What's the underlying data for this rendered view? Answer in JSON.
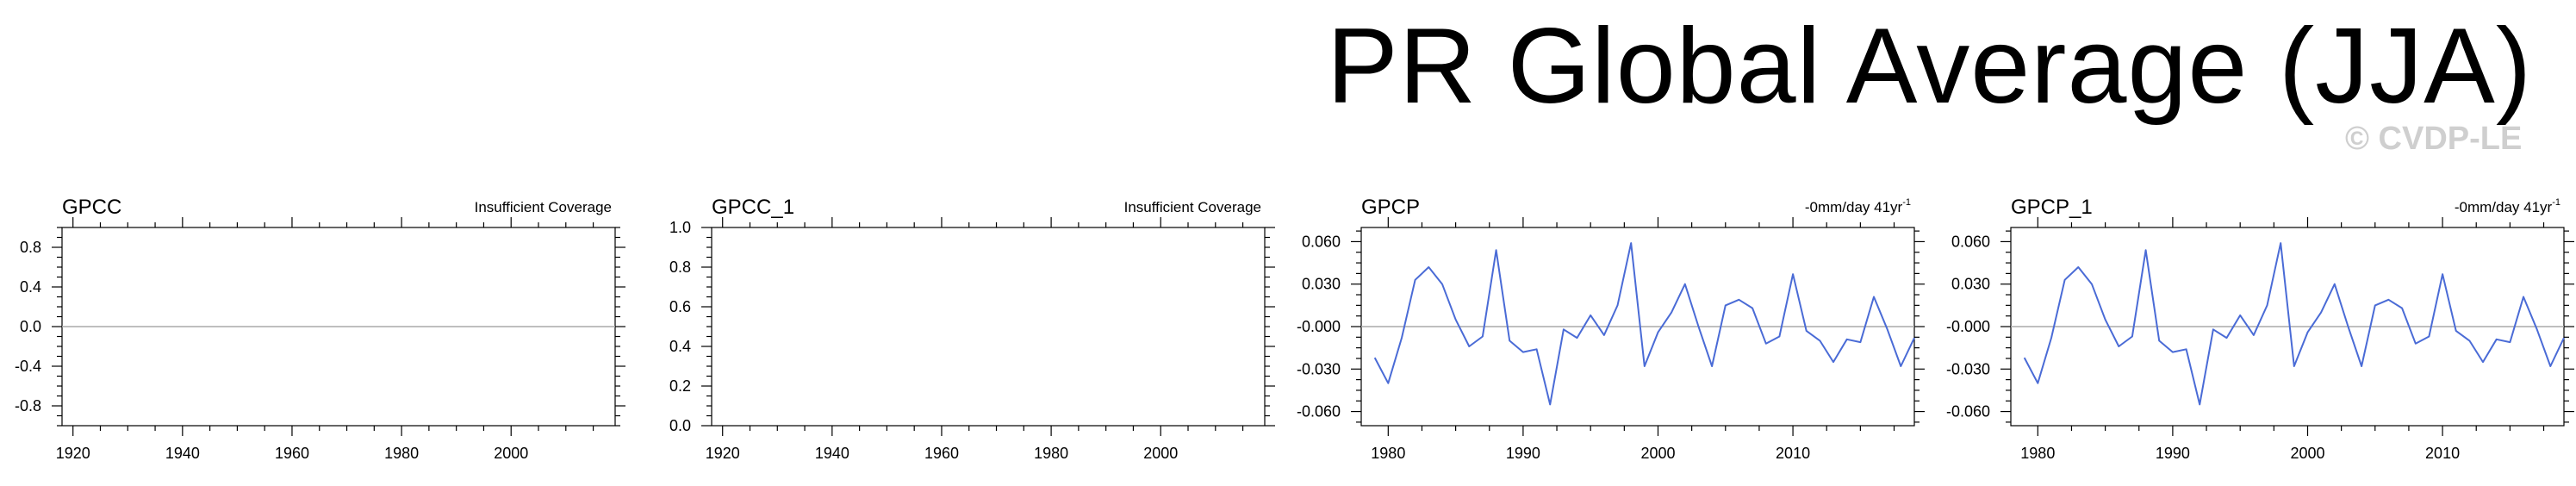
{
  "page": {
    "title": "PR Global Average (JJA)",
    "watermark": "© CVDP-LE"
  },
  "colors": {
    "series": "#4a6bd6",
    "zero_line": "#aaaaaa",
    "frame": "#000000"
  },
  "chart_data": [
    {
      "type": "line",
      "title": "GPCC",
      "note": "Insufficient Coverage",
      "note_sup": "",
      "xlim": [
        1918,
        2019
      ],
      "x_ticks": [
        1920,
        1940,
        1960,
        1980,
        2000
      ],
      "x_tick_labels": [
        "1920",
        "1940",
        "1960",
        "1980",
        "2000"
      ],
      "ylim": [
        -1,
        1
      ],
      "y_ticks": [
        0.8,
        0.4,
        0.0,
        -0.4,
        -0.8
      ],
      "y_tick_labels": [
        "0.8",
        "0.4",
        "0.0",
        "-0.4",
        "-0.8"
      ],
      "zero_line": true,
      "series": []
    },
    {
      "type": "line",
      "title": "GPCC_1",
      "note": "Insufficient Coverage",
      "note_sup": "",
      "xlim": [
        1918,
        2019
      ],
      "x_ticks": [
        1920,
        1940,
        1960,
        1980,
        2000
      ],
      "x_tick_labels": [
        "1920",
        "1940",
        "1960",
        "1980",
        "2000"
      ],
      "ylim": [
        0,
        1
      ],
      "y_ticks": [
        1.0,
        0.8,
        0.6,
        0.4,
        0.2,
        0.0
      ],
      "y_tick_labels": [
        "1.0",
        "0.8",
        "0.6",
        "0.4",
        "0.2",
        "0.0"
      ],
      "zero_line": false,
      "series": []
    },
    {
      "type": "line",
      "title": "GPCP",
      "note": "-0mm/day 41yr",
      "note_sup": "-1",
      "xlim": [
        1978,
        2019
      ],
      "x_ticks": [
        1980,
        1990,
        2000,
        2010
      ],
      "x_tick_labels": [
        "1980",
        "1990",
        "2000",
        "2010"
      ],
      "ylim": [
        -0.07,
        0.07
      ],
      "y_ticks": [
        0.06,
        0.03,
        0.0,
        -0.03,
        -0.06
      ],
      "y_tick_labels": [
        "0.060",
        "0.030",
        "-0.000",
        "-0.030",
        "-0.060"
      ],
      "zero_line": true,
      "series": [
        {
          "x": [
            1979,
            1980,
            1981,
            1982,
            1983,
            1984,
            1985,
            1986,
            1987,
            1988,
            1989,
            1990,
            1991,
            1992,
            1993,
            1994,
            1995,
            1996,
            1997,
            1998,
            1999,
            2000,
            2001,
            2002,
            2003,
            2004,
            2005,
            2006,
            2007,
            2008,
            2009,
            2010,
            2011,
            2012,
            2013,
            2014,
            2015,
            2016,
            2017,
            2018,
            2019
          ],
          "values": [
            -0.022,
            -0.04,
            -0.008,
            0.033,
            0.042,
            0.03,
            0.005,
            -0.014,
            -0.007,
            0.054,
            -0.01,
            -0.018,
            -0.016,
            -0.055,
            -0.002,
            -0.008,
            0.008,
            -0.006,
            0.015,
            0.059,
            -0.028,
            -0.004,
            0.01,
            0.03,
            0.0,
            -0.028,
            0.015,
            0.019,
            0.013,
            -0.012,
            -0.007,
            0.037,
            -0.003,
            -0.01,
            -0.025,
            -0.009,
            -0.011,
            0.021,
            -0.002,
            -0.028,
            -0.008
          ]
        }
      ]
    },
    {
      "type": "line",
      "title": "GPCP_1",
      "note": "-0mm/day 41yr",
      "note_sup": "-1",
      "xlim": [
        1978,
        2019
      ],
      "x_ticks": [
        1980,
        1990,
        2000,
        2010
      ],
      "x_tick_labels": [
        "1980",
        "1990",
        "2000",
        "2010"
      ],
      "ylim": [
        -0.07,
        0.07
      ],
      "y_ticks": [
        0.06,
        0.03,
        0.0,
        -0.03,
        -0.06
      ],
      "y_tick_labels": [
        "0.060",
        "0.030",
        "-0.000",
        "-0.030",
        "-0.060"
      ],
      "zero_line": true,
      "series": [
        {
          "x": [
            1979,
            1980,
            1981,
            1982,
            1983,
            1984,
            1985,
            1986,
            1987,
            1988,
            1989,
            1990,
            1991,
            1992,
            1993,
            1994,
            1995,
            1996,
            1997,
            1998,
            1999,
            2000,
            2001,
            2002,
            2003,
            2004,
            2005,
            2006,
            2007,
            2008,
            2009,
            2010,
            2011,
            2012,
            2013,
            2014,
            2015,
            2016,
            2017,
            2018,
            2019
          ],
          "values": [
            -0.022,
            -0.04,
            -0.008,
            0.033,
            0.042,
            0.03,
            0.005,
            -0.014,
            -0.007,
            0.054,
            -0.01,
            -0.018,
            -0.016,
            -0.055,
            -0.002,
            -0.008,
            0.008,
            -0.006,
            0.015,
            0.059,
            -0.028,
            -0.004,
            0.01,
            0.03,
            0.0,
            -0.028,
            0.015,
            0.019,
            0.013,
            -0.012,
            -0.007,
            0.037,
            -0.003,
            -0.01,
            -0.025,
            -0.009,
            -0.011,
            0.021,
            -0.002,
            -0.028,
            -0.008
          ]
        }
      ]
    }
  ]
}
